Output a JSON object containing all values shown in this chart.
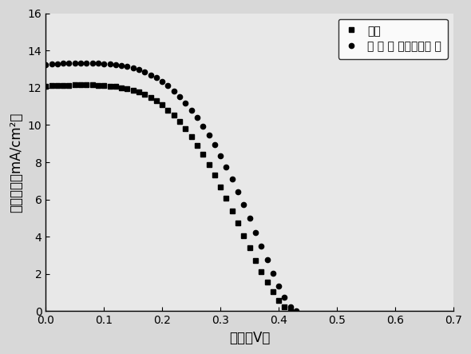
{
  "title": "",
  "xlabel": "电压（V）",
  "ylabel": "电流密度（mA/cm²）",
  "xlim": [
    0,
    0.7
  ],
  "ylim": [
    0,
    16
  ],
  "xticks": [
    0.0,
    0.1,
    0.2,
    0.3,
    0.4,
    0.5,
    0.6,
    0.7
  ],
  "yticks": [
    0,
    2,
    4,
    6,
    8,
    10,
    12,
    14,
    16
  ],
  "legend1": "铜片",
  "legend2": "金 属 硫 硒复合物阵 列",
  "bg_color": "#f0f0f0",
  "copper_x": [
    0.0,
    0.01,
    0.02,
    0.03,
    0.04,
    0.05,
    0.06,
    0.07,
    0.08,
    0.09,
    0.1,
    0.11,
    0.12,
    0.13,
    0.14,
    0.15,
    0.16,
    0.17,
    0.18,
    0.19,
    0.2,
    0.21,
    0.22,
    0.23,
    0.24,
    0.25,
    0.26,
    0.27,
    0.28,
    0.29,
    0.3,
    0.31,
    0.32,
    0.33,
    0.34,
    0.35,
    0.36,
    0.37,
    0.38,
    0.39,
    0.4,
    0.41,
    0.42,
    0.43,
    0.44,
    0.45,
    0.46,
    0.47,
    0.48,
    0.49,
    0.5,
    0.51,
    0.52,
    0.53,
    0.54,
    0.55,
    0.56,
    0.57,
    0.575
  ],
  "copper_y": [
    12.08,
    12.1,
    12.12,
    12.13,
    12.14,
    12.15,
    12.15,
    12.15,
    12.15,
    12.14,
    12.12,
    12.09,
    12.06,
    12.01,
    11.95,
    11.87,
    11.77,
    11.64,
    11.48,
    11.29,
    11.07,
    10.81,
    10.52,
    10.18,
    9.8,
    9.38,
    8.92,
    8.42,
    7.88,
    7.3,
    6.69,
    6.05,
    5.4,
    4.73,
    4.06,
    3.39,
    2.74,
    2.12,
    1.55,
    1.04,
    0.59,
    0.22,
    0.0,
    0.0,
    0.0,
    0.0,
    0.0,
    0.0,
    0.0,
    0.0,
    0.0,
    0.0,
    0.0,
    0.0,
    0.0,
    0.0,
    0.0,
    0.0,
    0.0
  ],
  "composite_x": [
    0.0,
    0.01,
    0.02,
    0.03,
    0.04,
    0.05,
    0.06,
    0.07,
    0.08,
    0.09,
    0.1,
    0.11,
    0.12,
    0.13,
    0.14,
    0.15,
    0.16,
    0.17,
    0.18,
    0.19,
    0.2,
    0.21,
    0.22,
    0.23,
    0.24,
    0.25,
    0.26,
    0.27,
    0.28,
    0.29,
    0.3,
    0.31,
    0.32,
    0.33,
    0.34,
    0.35,
    0.36,
    0.37,
    0.38,
    0.39,
    0.4,
    0.41,
    0.42,
    0.43,
    0.44,
    0.45,
    0.46,
    0.47,
    0.48,
    0.49,
    0.5,
    0.51,
    0.52,
    0.53,
    0.54,
    0.55,
    0.56,
    0.57,
    0.58,
    0.585,
    0.59,
    0.595,
    0.6
  ],
  "composite_y": [
    13.25,
    13.28,
    13.3,
    13.32,
    13.33,
    13.33,
    13.33,
    13.33,
    13.33,
    13.32,
    13.3,
    13.28,
    13.25,
    13.2,
    13.14,
    13.06,
    12.96,
    12.84,
    12.7,
    12.53,
    12.33,
    12.1,
    11.83,
    11.53,
    11.19,
    10.81,
    10.4,
    9.95,
    9.46,
    8.93,
    8.36,
    7.75,
    7.1,
    6.42,
    5.71,
    4.98,
    4.24,
    3.49,
    2.75,
    2.03,
    1.35,
    0.73,
    0.22,
    0.0,
    0.0,
    0.0,
    0.0,
    0.0,
    0.0,
    0.0,
    0.0,
    0.0,
    0.0,
    0.0,
    0.0,
    0.0,
    0.0,
    0.0,
    0.0,
    0.0,
    0.0,
    0.0,
    0.0
  ]
}
